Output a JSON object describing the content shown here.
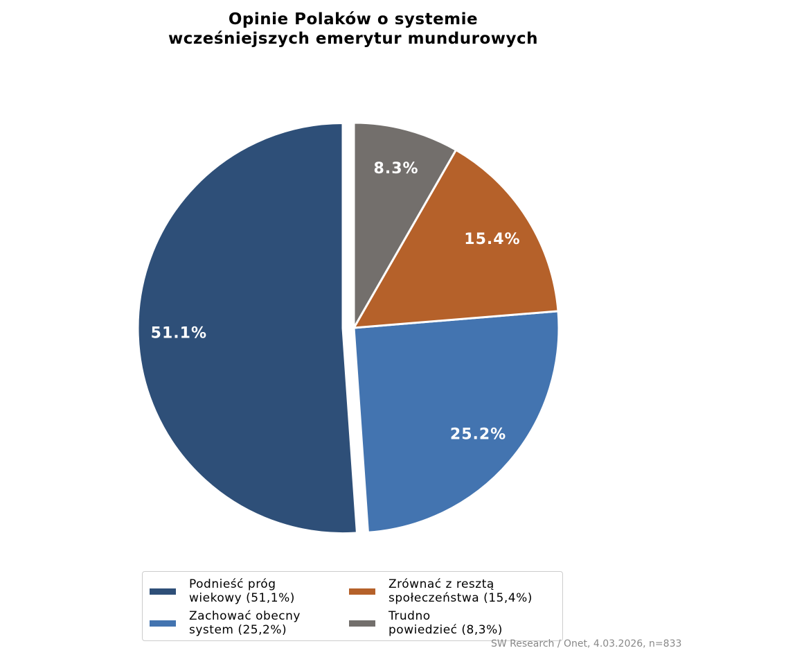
{
  "chart_data": {
    "type": "pie",
    "title": "Opinie Polaków o systemie\nwcześniejszych emerytur mundurowych",
    "categories": [
      "Podnieść próg\nwiekowy (51,1%)",
      "Zachować obecny\nsystem (25,2%)",
      "Zrównać z resztą\nspołeczeństwa (15,4%)",
      "Trudno\npowiedzieć (8,3%)"
    ],
    "values": [
      51.1,
      25.2,
      15.4,
      8.3
    ],
    "value_labels": [
      "51.1%",
      "25.2%",
      "15.4%",
      "8.3%"
    ],
    "colors": [
      "#2e4f78",
      "#4374b0",
      "#b5612a",
      "#736f6c"
    ],
    "source": "SW Research / Onet, 4.03.2026, n=833"
  }
}
